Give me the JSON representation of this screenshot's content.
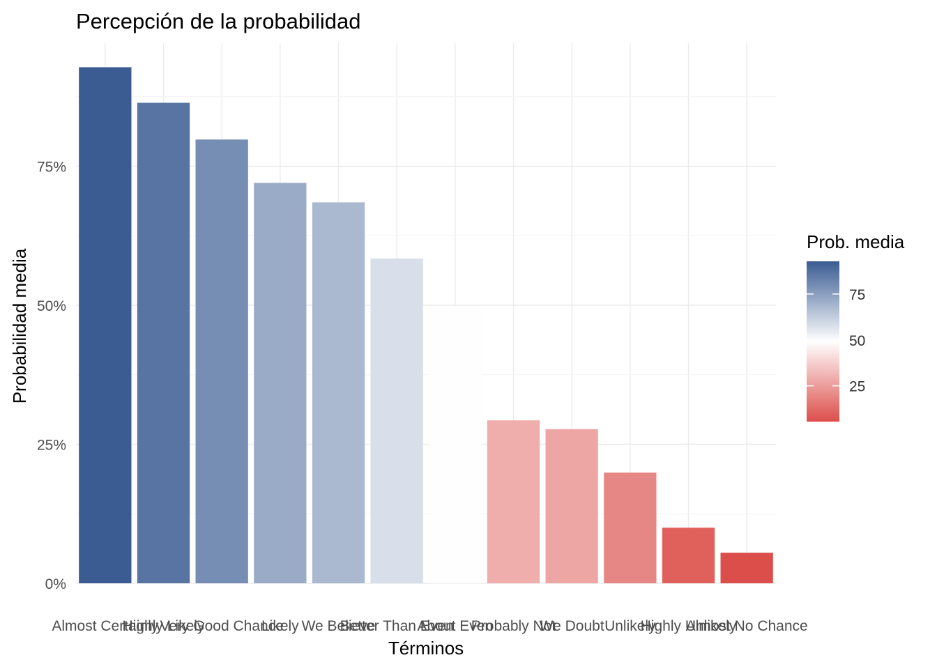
{
  "chart_data": {
    "type": "bar",
    "title": "Percepción de la probabilidad",
    "xlabel": "Términos",
    "ylabel": "Probabilidad media",
    "categories": [
      "Almost Certainly",
      "Highly Likely",
      "Very Good Chance",
      "Likely",
      "We Believe",
      "Better Than Even",
      "About Even",
      "Probably Not",
      "We Doubt",
      "Unlikely",
      "Highly Unlikely",
      "Almost No Chance"
    ],
    "values": [
      92.8,
      86.4,
      79.8,
      72.0,
      68.5,
      58.4,
      49.8,
      29.3,
      27.7,
      19.9,
      10.0,
      5.5
    ],
    "ylim": [
      0,
      98
    ],
    "y_ticks": [
      0,
      25,
      50,
      75
    ],
    "y_tick_labels": [
      "0%",
      "25%",
      "50%",
      "75%"
    ],
    "grid": true,
    "legend": {
      "title": "Prob. media",
      "position": "right",
      "ticks": [
        25,
        50,
        75
      ],
      "range": [
        5.5,
        92.8
      ],
      "colors": {
        "low": "#dc4e4a",
        "mid": "#ffffff",
        "high": "#3a5c93"
      }
    }
  }
}
